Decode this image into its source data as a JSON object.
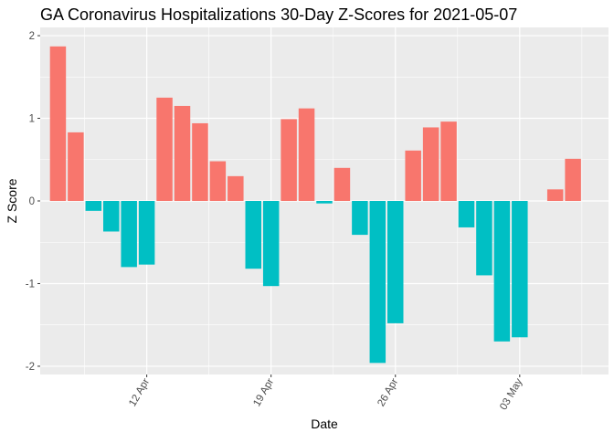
{
  "chart_data": {
    "type": "bar",
    "title": "GA Coronavirus Hospitalizations 30-Day Z-Scores for 2021-05-07",
    "xlabel": "Date",
    "ylabel": "Z Score",
    "ylim": [
      -2.1,
      2.1
    ],
    "y_ticks": [
      -2,
      -1,
      0,
      1,
      2
    ],
    "y_tick_labels": [
      "-2",
      "-1",
      "0",
      "1",
      "2"
    ],
    "x_range": [
      "2021-04-06",
      "2021-05-08"
    ],
    "x_ticks": [
      "2021-04-12",
      "2021-04-19",
      "2021-04-26",
      "2021-05-03"
    ],
    "x_tick_labels": [
      "12 Apr",
      "19 Apr",
      "26 Apr",
      "03 May"
    ],
    "grid": true,
    "legend": "none",
    "colors": {
      "positive": "#F8766D",
      "negative": "#00BFC4",
      "panel": "#EBEBEB",
      "grid": "#FFFFFF"
    },
    "dates": [
      "2021-04-07",
      "2021-04-08",
      "2021-04-09",
      "2021-04-10",
      "2021-04-11",
      "2021-04-12",
      "2021-04-13",
      "2021-04-14",
      "2021-04-15",
      "2021-04-16",
      "2021-04-17",
      "2021-04-18",
      "2021-04-19",
      "2021-04-20",
      "2021-04-21",
      "2021-04-22",
      "2021-04-23",
      "2021-04-24",
      "2021-04-25",
      "2021-04-26",
      "2021-04-27",
      "2021-04-28",
      "2021-04-29",
      "2021-04-30",
      "2021-05-01",
      "2021-05-02",
      "2021-05-03",
      "2021-05-04",
      "2021-05-05",
      "2021-05-06",
      "2021-05-07"
    ],
    "values": [
      1.87,
      0.83,
      -0.12,
      -0.37,
      -0.8,
      -0.77,
      1.25,
      1.15,
      0.94,
      0.48,
      0.3,
      -0.82,
      -1.03,
      0.99,
      1.12,
      -0.03,
      0.4,
      -0.41,
      -1.96,
      -1.48,
      0.61,
      0.89,
      0.96,
      -0.32,
      -0.9,
      -1.7,
      -1.65,
      0.0,
      0.14,
      0.51,
      0.0
    ]
  }
}
